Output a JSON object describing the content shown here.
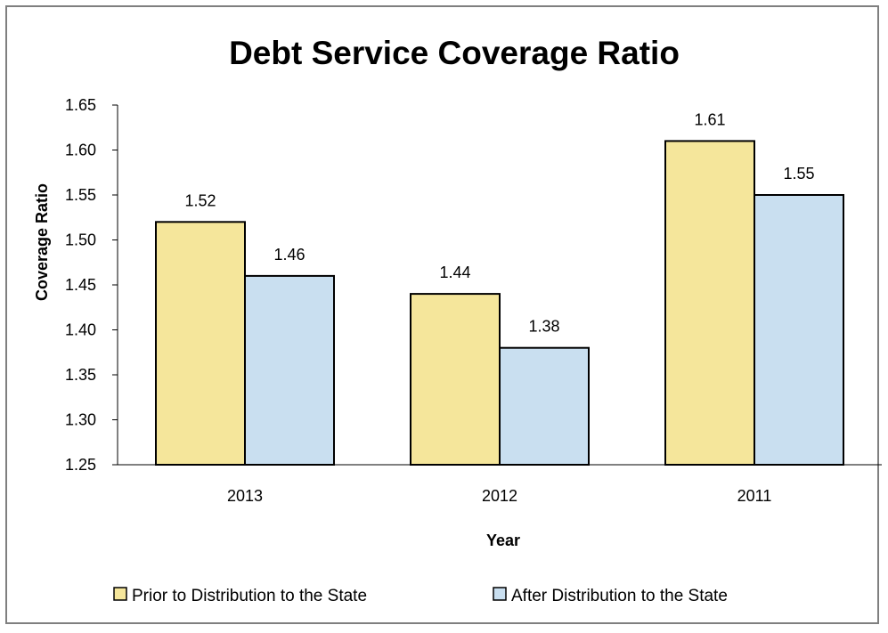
{
  "chart_data": {
    "type": "bar",
    "title": "Debt Service Coverage Ratio",
    "xlabel": "Year",
    "ylabel": "Coverage Ratio",
    "categories": [
      "2013",
      "2012",
      "2011"
    ],
    "series": [
      {
        "name": "Prior to Distribution to the State",
        "values": [
          1.52,
          1.44,
          1.61
        ],
        "color": "#f5e69b"
      },
      {
        "name": "After Distribution to the State",
        "values": [
          1.46,
          1.38,
          1.55
        ],
        "color": "#c9dff0"
      }
    ],
    "ylim": [
      1.25,
      1.65
    ],
    "yticks": [
      "1.25",
      "1.30",
      "1.35",
      "1.40",
      "1.45",
      "1.50",
      "1.55",
      "1.60",
      "1.65"
    ],
    "data_labels": [
      [
        "1.52",
        "1.44",
        "1.61"
      ],
      [
        "1.46",
        "1.38",
        "1.55"
      ]
    ],
    "grid": false,
    "legend_position": "bottom",
    "border_color": "#7f7f7f",
    "bar_outline_color": "#000000"
  }
}
